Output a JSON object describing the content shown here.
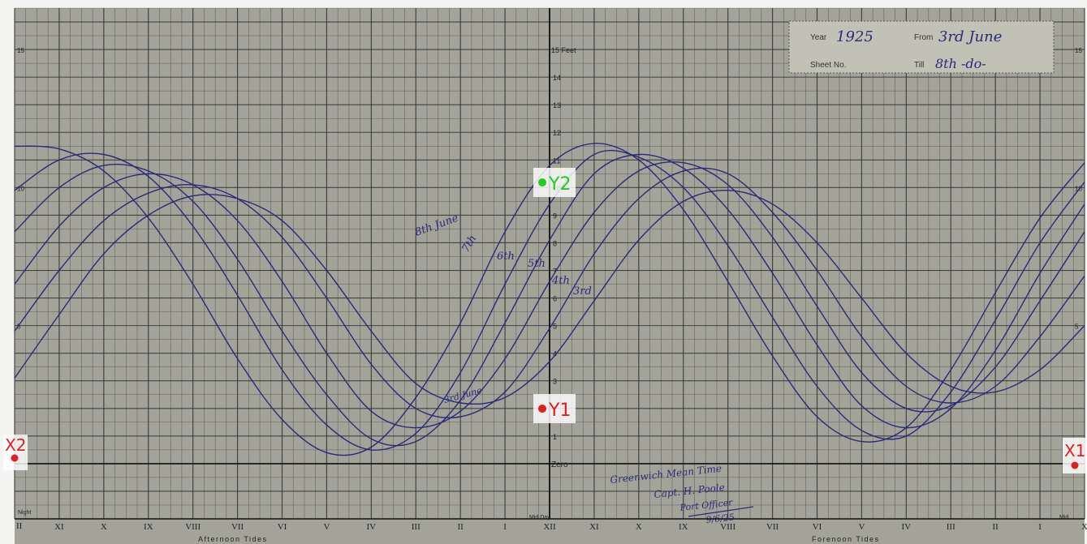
{
  "chart_data": {
    "type": "line",
    "header": {
      "year_label": "Year",
      "year_value": "1925",
      "from_label": "From",
      "from_value": "3rd June",
      "sheet_label": "Sheet No.",
      "till_label": "Till",
      "till_value": "8th -do-"
    },
    "yaxis": {
      "unit_label": "15 Feet",
      "ticks": [
        "1",
        "2",
        "3",
        "4",
        "5",
        "6",
        "7",
        "8",
        "9",
        "10",
        "11",
        "12",
        "13",
        "14",
        "15"
      ],
      "zero_label": "Zero",
      "edge_ticks": [
        "5",
        "10",
        "15"
      ],
      "ylim": [
        -2,
        16.5
      ]
    },
    "xaxis": {
      "ticks": [
        "XI",
        "X",
        "IX",
        "VIII",
        "VII",
        "VI",
        "V",
        "IV",
        "III",
        "II",
        "I",
        "XII",
        "XI",
        "X",
        "IX",
        "VIII",
        "VII",
        "VI",
        "V",
        "IV",
        "III",
        "II",
        "I",
        "X"
      ],
      "xlim": [
        0,
        24
      ],
      "left_end_label": "Night",
      "midday_label": "Mid Day",
      "right_end_label": "Mid",
      "left_section_label": "Afternoon Tides",
      "right_section_label": "Forenoon Tides",
      "edge_left_label": "II"
    },
    "series": [
      {
        "name": "8th June",
        "x": [
          0,
          1,
          2,
          3,
          4,
          5,
          6,
          7,
          8,
          9,
          10,
          11,
          12,
          13,
          14,
          15,
          16,
          17,
          18,
          19,
          20,
          21,
          22,
          23,
          24
        ],
        "y": [
          11.5,
          11.4,
          10.6,
          8.9,
          6.5,
          3.8,
          1.6,
          0.4,
          0.6,
          2.4,
          5.1,
          8.4,
          10.8,
          11.6,
          11.0,
          9.2,
          6.6,
          3.9,
          1.7,
          0.8,
          1.3,
          3.4,
          6.2,
          8.9,
          10.9
        ]
      },
      {
        "name": "7th",
        "x": [
          0,
          1,
          2,
          3,
          4,
          5,
          6,
          7,
          8,
          9,
          10,
          11,
          12,
          13,
          14,
          15,
          16,
          17,
          18,
          19,
          20,
          21,
          22,
          23,
          24
        ],
        "y": [
          9.9,
          11.0,
          11.2,
          10.4,
          8.6,
          6.1,
          3.4,
          1.4,
          0.5,
          1.1,
          3.3,
          6.5,
          9.4,
          11.2,
          11.1,
          10.0,
          7.9,
          5.3,
          2.8,
          1.2,
          1.0,
          2.6,
          5.2,
          8.0,
          10.2
        ]
      },
      {
        "name": "6th",
        "x": [
          0,
          1,
          2,
          3,
          4,
          5,
          6,
          7,
          8,
          9,
          10,
          11,
          12,
          13,
          14,
          15,
          16,
          17,
          18,
          19,
          20,
          21,
          22,
          23,
          24
        ],
        "y": [
          8.4,
          10.0,
          10.8,
          10.6,
          9.5,
          7.4,
          4.8,
          2.5,
          0.9,
          0.8,
          2.3,
          5.1,
          8.1,
          10.5,
          11.2,
          10.7,
          9.2,
          6.9,
          4.3,
          2.1,
          1.3,
          2.0,
          4.1,
          6.9,
          9.4
        ]
      },
      {
        "name": "5th",
        "x": [
          0,
          1,
          2,
          3,
          4,
          5,
          6,
          7,
          8,
          9,
          10,
          11,
          12,
          13,
          14,
          15,
          16,
          17,
          18,
          19,
          20,
          21,
          22,
          23,
          24
        ],
        "y": [
          6.5,
          8.6,
          10.0,
          10.5,
          10.1,
          8.8,
          6.6,
          4.0,
          1.9,
          1.3,
          1.9,
          3.8,
          6.6,
          9.1,
          10.6,
          10.9,
          10.1,
          8.2,
          5.7,
          3.3,
          2.0,
          2.1,
          3.5,
          5.9,
          8.4
        ]
      },
      {
        "name": "4th",
        "x": [
          0,
          1,
          2,
          3,
          4,
          5,
          6,
          7,
          8,
          9,
          10,
          11,
          12,
          13,
          14,
          15,
          16,
          17,
          18,
          19,
          20,
          21,
          22,
          23,
          24
        ],
        "y": [
          4.8,
          7.0,
          8.8,
          9.8,
          10.1,
          9.6,
          8.2,
          6.0,
          3.6,
          2.0,
          1.7,
          2.6,
          4.9,
          7.6,
          9.6,
          10.6,
          10.5,
          9.1,
          7.0,
          4.6,
          2.8,
          2.2,
          2.8,
          4.6,
          6.8
        ]
      },
      {
        "name": "3rd",
        "x": [
          0,
          1,
          2,
          3,
          4,
          5,
          6,
          7,
          8,
          9,
          10,
          11,
          12,
          13,
          14,
          15,
          16,
          17,
          18,
          19,
          20,
          21,
          22,
          23,
          24
        ],
        "y": [
          3.1,
          5.4,
          7.6,
          9.0,
          9.7,
          9.6,
          8.8,
          7.0,
          4.8,
          2.9,
          2.2,
          2.4,
          3.7,
          5.9,
          8.1,
          9.5,
          9.9,
          9.4,
          8.0,
          6.0,
          4.0,
          2.8,
          2.6,
          3.4,
          5.0
        ]
      }
    ],
    "curve_annotations": [
      "8th June",
      "7th",
      "6th",
      "5th",
      "4th",
      "3rd",
      "3rd June"
    ],
    "signature": [
      "Greenwich Mean Time",
      "Capt. H. Poole",
      "Port Officer",
      "9/6/25"
    ],
    "markers": [
      {
        "label": "Y2",
        "color": "#22cc22"
      },
      {
        "label": "Y1",
        "color": "#e02020"
      },
      {
        "label": "X1",
        "color": "#e02020"
      },
      {
        "label": "X2",
        "color": "#e02020"
      }
    ],
    "grid": true,
    "line_color": "#2b2a7a",
    "grid_color": "#333333",
    "paper_color": "#a3a39a"
  }
}
